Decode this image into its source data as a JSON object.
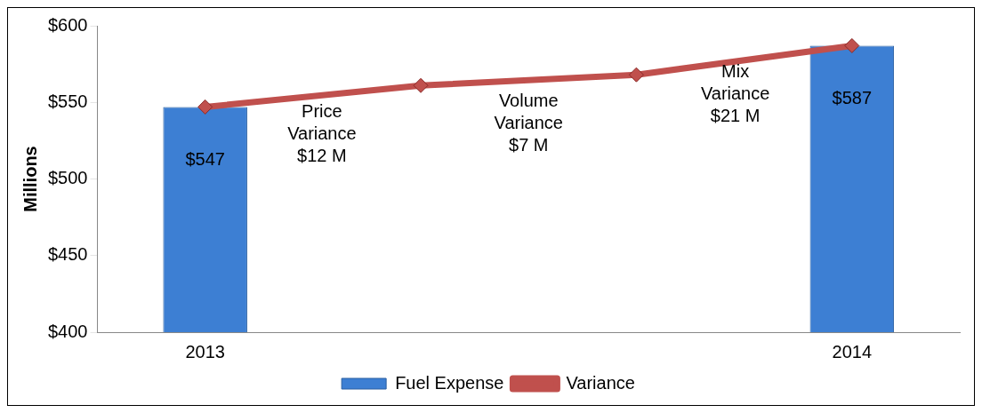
{
  "chart_data": {
    "type": "bar",
    "categories": [
      "2013",
      null,
      null,
      "2014"
    ],
    "ylabel": "Millions",
    "series": [
      {
        "name": "Fuel Expense",
        "color": "#3d7fd3",
        "values": [
          547,
          null,
          null,
          587
        ],
        "value_labels": [
          "$547",
          null,
          null,
          "$587"
        ]
      },
      {
        "name": "Variance",
        "type": "line",
        "color": "#c0504d",
        "values": [
          547,
          561,
          568,
          587
        ],
        "marker": "diamond"
      }
    ],
    "ylim": [
      400,
      600
    ],
    "yticks": [
      {
        "value": 400,
        "label": "$400"
      },
      {
        "value": 450,
        "label": "$450"
      },
      {
        "value": 500,
        "label": "$500"
      },
      {
        "value": 550,
        "label": "$550"
      },
      {
        "value": 600,
        "label": "$600"
      }
    ],
    "annotations": [
      "Price\nVariance\n$12 M",
      "Volume\nVariance\n$7 M",
      "Mix\nVariance\n$21 M"
    ],
    "grid": false,
    "legend": "bottom"
  }
}
